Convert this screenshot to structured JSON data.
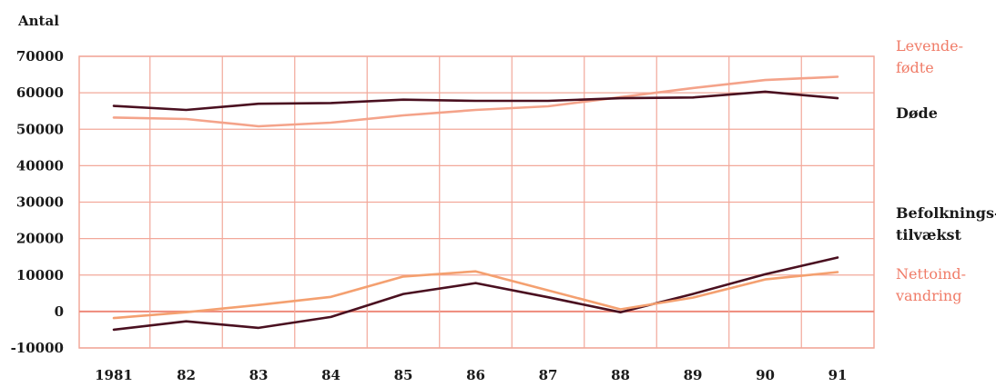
{
  "chart_data": {
    "type": "line",
    "ylabel": "Antal",
    "x": [
      "1981",
      "82",
      "83",
      "84",
      "85",
      "86",
      "87",
      "88",
      "89",
      "90",
      "91"
    ],
    "ylim": [
      -10000,
      70000
    ],
    "yticks": [
      70000,
      60000,
      50000,
      40000,
      30000,
      20000,
      10000,
      0,
      -10000
    ],
    "grid": true,
    "legend_position": "right",
    "series": [
      {
        "key": "levendefodte",
        "label_lines": [
          "Levende-",
          "fødte"
        ],
        "color": "#f4a38a",
        "values": [
          53200,
          52800,
          50800,
          51800,
          53800,
          55300,
          56300,
          58800,
          61300,
          63500,
          64400
        ]
      },
      {
        "key": "dode",
        "label_lines": [
          "Døde"
        ],
        "color": "#4a1020",
        "values": [
          56400,
          55300,
          57000,
          57200,
          58100,
          57800,
          57800,
          58500,
          58700,
          60300,
          58500
        ]
      },
      {
        "key": "befolkningstilvaekst",
        "label_lines": [
          "Befolknings-",
          "tilvækst"
        ],
        "color": "#4a1020",
        "values": [
          -5000,
          -2700,
          -4500,
          -1500,
          4800,
          7800,
          3900,
          -200,
          4800,
          10200,
          14800
        ]
      },
      {
        "key": "nettoindvandring",
        "label_lines": [
          "Nettoind-",
          "vandring"
        ],
        "color": "#f4a070",
        "values": [
          -1800,
          -200,
          1800,
          4000,
          9600,
          11000,
          5800,
          600,
          3800,
          8800,
          10800
        ]
      }
    ]
  },
  "colors": {
    "grid": "#f2a89a",
    "zero_axis": "#ee8a7a",
    "label_pink": "#f07c68",
    "label_dark": "#1a1a1a"
  }
}
